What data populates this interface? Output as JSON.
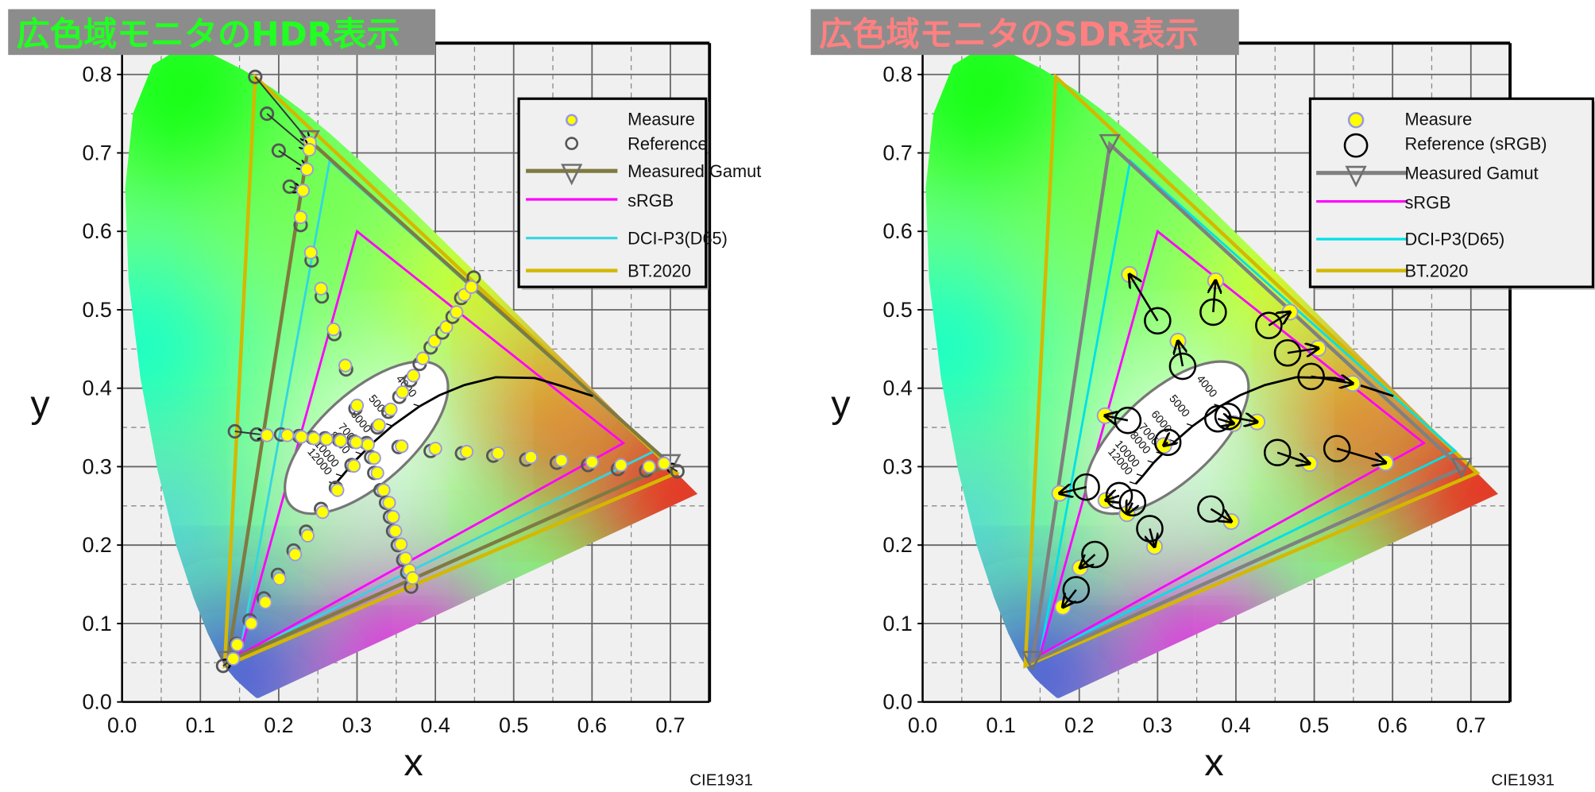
{
  "colors": {
    "plot_bg": "#f0f0f0",
    "measure_fill": "#ffff00",
    "measure_halo": "#9a9ae0",
    "reference_left": "#555555",
    "reference_right": "#000000",
    "gamut_measured_left": "#807a40",
    "gamut_measured_right": "#808080",
    "srgb": "#ff00ff",
    "dci_p3": "#33d6e0",
    "bt2020": "#d4b800",
    "title_box": "#8c8c8c",
    "title_left_text": "#22ff22",
    "title_right_text": "#ff8080"
  },
  "chart_data": [
    {
      "type": "scatter",
      "title": "広色域モニタのHDR表示",
      "xlabel": "x",
      "ylabel": "y",
      "footer": "CIE1931",
      "xlim": [
        0,
        0.75
      ],
      "ylim": [
        0,
        0.84
      ],
      "x_ticks": [
        "0.0",
        "0.1",
        "0.2",
        "0.3",
        "0.4",
        "0.5",
        "0.6",
        "0.7"
      ],
      "y_ticks": [
        "0.0",
        "0.1",
        "0.2",
        "0.3",
        "0.4",
        "0.5",
        "0.6",
        "0.7",
        "0.8"
      ],
      "grid": true,
      "legend_position": "top-right",
      "legend": [
        "Measure",
        "Reference",
        "Measured Gamut",
        "sRGB",
        "DCI-P3(D65)",
        "BT.2020"
      ],
      "cct_labels": [
        "4000",
        "5000",
        "6000",
        "7000",
        "8000",
        "10000",
        "12000"
      ],
      "measured_gamut": [
        [
          0.7,
          0.303
        ],
        [
          0.239,
          0.716
        ],
        [
          0.135,
          0.052
        ]
      ],
      "pairs_measure_ref": [
        [
          0.24,
          0.713,
          0.17,
          0.797
        ],
        [
          0.239,
          0.704,
          0.185,
          0.75
        ],
        [
          0.236,
          0.679,
          0.2,
          0.703
        ],
        [
          0.231,
          0.652,
          0.214,
          0.657
        ],
        [
          0.228,
          0.618,
          0.228,
          0.608
        ],
        [
          0.241,
          0.573,
          0.242,
          0.563
        ],
        [
          0.254,
          0.527,
          0.255,
          0.517
        ],
        [
          0.27,
          0.475,
          0.271,
          0.469
        ],
        [
          0.285,
          0.429,
          0.286,
          0.424
        ],
        [
          0.358,
          0.395,
          0.354,
          0.389
        ],
        [
          0.372,
          0.416,
          0.368,
          0.41
        ],
        [
          0.384,
          0.438,
          0.38,
          0.431
        ],
        [
          0.399,
          0.46,
          0.394,
          0.452
        ],
        [
          0.414,
          0.478,
          0.409,
          0.471
        ],
        [
          0.427,
          0.497,
          0.422,
          0.491
        ],
        [
          0.437,
          0.519,
          0.433,
          0.515
        ],
        [
          0.446,
          0.529,
          0.449,
          0.541
        ],
        [
          0.314,
          0.328,
          0.312,
          0.33
        ],
        [
          0.299,
          0.331,
          0.296,
          0.332
        ],
        [
          0.279,
          0.333,
          0.277,
          0.334
        ],
        [
          0.261,
          0.335,
          0.259,
          0.336
        ],
        [
          0.245,
          0.336,
          0.243,
          0.337
        ],
        [
          0.229,
          0.338,
          0.226,
          0.339
        ],
        [
          0.211,
          0.34,
          0.203,
          0.341
        ],
        [
          0.185,
          0.34,
          0.172,
          0.341
        ],
        [
          0.185,
          0.34,
          0.144,
          0.345
        ],
        [
          0.357,
          0.326,
          0.353,
          0.325
        ],
        [
          0.4,
          0.323,
          0.394,
          0.32
        ],
        [
          0.44,
          0.319,
          0.434,
          0.317
        ],
        [
          0.48,
          0.317,
          0.474,
          0.314
        ],
        [
          0.522,
          0.312,
          0.516,
          0.309
        ],
        [
          0.561,
          0.308,
          0.555,
          0.305
        ],
        [
          0.6,
          0.306,
          0.595,
          0.302
        ],
        [
          0.637,
          0.302,
          0.633,
          0.297
        ],
        [
          0.673,
          0.3,
          0.669,
          0.295
        ],
        [
          0.692,
          0.304,
          0.709,
          0.294
        ],
        [
          0.322,
          0.311,
          0.318,
          0.312
        ],
        [
          0.326,
          0.292,
          0.322,
          0.292
        ],
        [
          0.334,
          0.27,
          0.33,
          0.27
        ],
        [
          0.341,
          0.254,
          0.337,
          0.254
        ],
        [
          0.346,
          0.236,
          0.342,
          0.236
        ],
        [
          0.349,
          0.218,
          0.346,
          0.218
        ],
        [
          0.356,
          0.201,
          0.352,
          0.2
        ],
        [
          0.362,
          0.183,
          0.359,
          0.181
        ],
        [
          0.367,
          0.168,
          0.364,
          0.165
        ],
        [
          0.371,
          0.158,
          0.369,
          0.147
        ],
        [
          0.296,
          0.301,
          0.293,
          0.302
        ],
        [
          0.275,
          0.27,
          0.273,
          0.273
        ],
        [
          0.256,
          0.242,
          0.254,
          0.246
        ],
        [
          0.237,
          0.212,
          0.235,
          0.217
        ],
        [
          0.221,
          0.188,
          0.219,
          0.193
        ],
        [
          0.201,
          0.157,
          0.199,
          0.162
        ],
        [
          0.183,
          0.127,
          0.181,
          0.132
        ],
        [
          0.165,
          0.1,
          0.163,
          0.104
        ],
        [
          0.147,
          0.073,
          0.146,
          0.074
        ],
        [
          0.142,
          0.055,
          0.129,
          0.046
        ],
        [
          0.3,
          0.378,
          0.298,
          0.374
        ],
        [
          0.343,
          0.373,
          0.34,
          0.37
        ],
        [
          0.328,
          0.353,
          0.326,
          0.35
        ]
      ]
    },
    {
      "type": "scatter",
      "title": "広色域モニタのSDR表示",
      "xlabel": "x",
      "ylabel": "y",
      "footer": "CIE1931",
      "xlim": [
        0,
        0.75
      ],
      "ylim": [
        0,
        0.84
      ],
      "x_ticks": [
        "0.0",
        "0.1",
        "0.2",
        "0.3",
        "0.4",
        "0.5",
        "0.6",
        "0.7"
      ],
      "y_ticks": [
        "0.0",
        "0.1",
        "0.2",
        "0.3",
        "0.4",
        "0.5",
        "0.6",
        "0.7",
        "0.8"
      ],
      "grid": true,
      "legend_position": "top-right",
      "legend": [
        "Measure",
        "Reference (sRGB)",
        "Measured Gamut",
        "sRGB",
        "DCI-P3(D65)",
        "BT.2020"
      ],
      "cct_labels": [
        "4000",
        "5000",
        "6000",
        "7000",
        "8000",
        "10000",
        "12000"
      ],
      "measured_gamut": [
        [
          0.688,
          0.298
        ],
        [
          0.239,
          0.711
        ],
        [
          0.14,
          0.052
        ]
      ],
      "pairs_measure_ref": [
        [
          0.264,
          0.545,
          0.3,
          0.486
        ],
        [
          0.374,
          0.537,
          0.371,
          0.497
        ],
        [
          0.326,
          0.46,
          0.332,
          0.428
        ],
        [
          0.469,
          0.497,
          0.442,
          0.48
        ],
        [
          0.505,
          0.451,
          0.466,
          0.445
        ],
        [
          0.549,
          0.406,
          0.496,
          0.415
        ],
        [
          0.397,
          0.355,
          0.377,
          0.361
        ],
        [
          0.427,
          0.357,
          0.39,
          0.364
        ],
        [
          0.308,
          0.327,
          0.313,
          0.331
        ],
        [
          0.233,
          0.365,
          0.262,
          0.359
        ],
        [
          0.494,
          0.304,
          0.453,
          0.318
        ],
        [
          0.591,
          0.305,
          0.529,
          0.323
        ],
        [
          0.175,
          0.266,
          0.209,
          0.274
        ],
        [
          0.234,
          0.257,
          0.251,
          0.263
        ],
        [
          0.261,
          0.24,
          0.268,
          0.254
        ],
        [
          0.296,
          0.198,
          0.29,
          0.221
        ],
        [
          0.394,
          0.23,
          0.368,
          0.246
        ],
        [
          0.201,
          0.171,
          0.22,
          0.188
        ],
        [
          0.179,
          0.121,
          0.196,
          0.143
        ]
      ]
    }
  ],
  "standard_gamuts": {
    "sRGB": [
      [
        0.64,
        0.33
      ],
      [
        0.3,
        0.6
      ],
      [
        0.15,
        0.06
      ]
    ],
    "DCI-P3(D65)": [
      [
        0.68,
        0.32
      ],
      [
        0.265,
        0.69
      ],
      [
        0.15,
        0.06
      ]
    ],
    "BT.2020": [
      [
        0.708,
        0.292
      ],
      [
        0.17,
        0.797
      ],
      [
        0.131,
        0.046
      ]
    ]
  },
  "spectral_locus": [
    [
      0.1741,
      0.005
    ],
    [
      0.1714,
      0.0051
    ],
    [
      0.1644,
      0.0109
    ],
    [
      0.1566,
      0.0177
    ],
    [
      0.144,
      0.0297
    ],
    [
      0.1355,
      0.0399
    ],
    [
      0.1241,
      0.0578
    ],
    [
      0.1096,
      0.0868
    ],
    [
      0.0913,
      0.1327
    ],
    [
      0.0687,
      0.2007
    ],
    [
      0.0454,
      0.295
    ],
    [
      0.0235,
      0.4127
    ],
    [
      0.0082,
      0.5384
    ],
    [
      0.0039,
      0.6548
    ],
    [
      0.0139,
      0.7502
    ],
    [
      0.0389,
      0.812
    ],
    [
      0.0743,
      0.8338
    ],
    [
      0.1142,
      0.8262
    ],
    [
      0.1547,
      0.8059
    ],
    [
      0.1929,
      0.7816
    ],
    [
      0.2296,
      0.7543
    ],
    [
      0.2658,
      0.7243
    ],
    [
      0.3016,
      0.6923
    ],
    [
      0.3373,
      0.6589
    ],
    [
      0.3731,
      0.6245
    ],
    [
      0.4087,
      0.5896
    ],
    [
      0.4441,
      0.5547
    ],
    [
      0.4788,
      0.5202
    ],
    [
      0.5125,
      0.4866
    ],
    [
      0.5448,
      0.4544
    ],
    [
      0.5752,
      0.4242
    ],
    [
      0.6029,
      0.3965
    ],
    [
      0.627,
      0.3725
    ],
    [
      0.6658,
      0.334
    ],
    [
      0.6915,
      0.3083
    ],
    [
      0.719,
      0.2809
    ],
    [
      0.7347,
      0.2653
    ]
  ],
  "planckian_locus": [
    [
      0.601,
      0.39
    ],
    [
      0.564,
      0.402
    ],
    [
      0.527,
      0.413
    ],
    [
      0.477,
      0.414
    ],
    [
      0.437,
      0.404
    ],
    [
      0.405,
      0.391
    ],
    [
      0.38,
      0.377
    ],
    [
      0.345,
      0.352
    ],
    [
      0.322,
      0.332
    ],
    [
      0.306,
      0.316
    ],
    [
      0.295,
      0.305
    ],
    [
      0.281,
      0.288
    ],
    [
      0.272,
      0.278
    ]
  ]
}
